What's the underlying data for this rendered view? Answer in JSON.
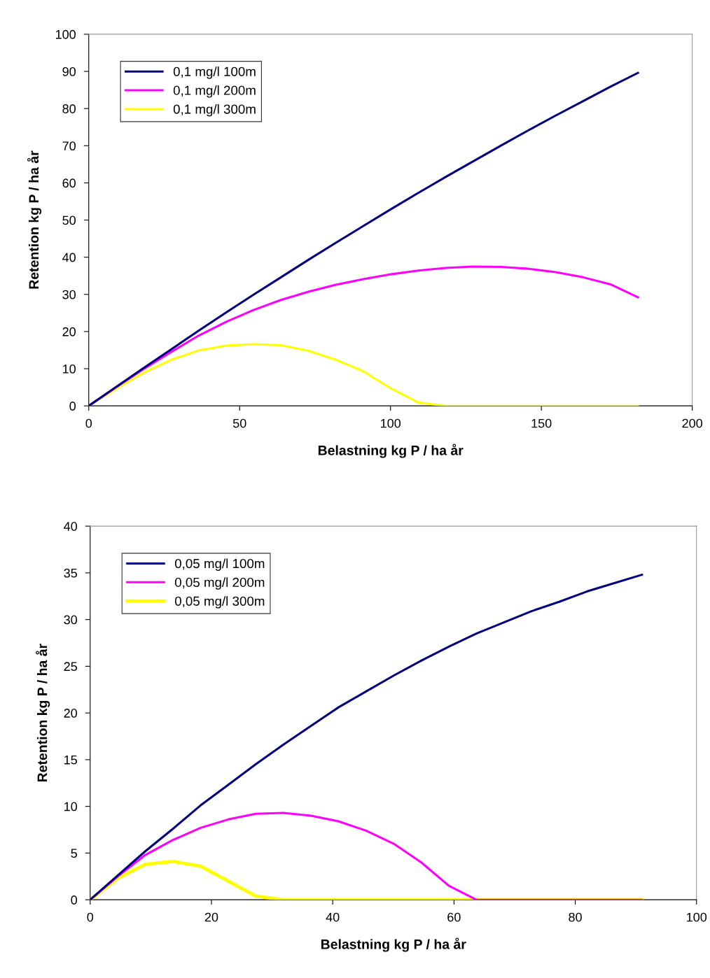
{
  "chart_data": [
    {
      "type": "line",
      "xlabel": "Belastning kg P / ha år",
      "ylabel": "Retention kg P / ha år",
      "xlim": [
        0,
        200
      ],
      "ylim": [
        0,
        100
      ],
      "xticks": [
        0,
        50,
        100,
        150,
        200
      ],
      "yticks": [
        0,
        10,
        20,
        30,
        40,
        50,
        60,
        70,
        80,
        90,
        100
      ],
      "grid": false,
      "legend": "top left",
      "marker": "none",
      "line_style": "solid",
      "x": [
        0,
        9.1,
        18.2,
        27.3,
        36.4,
        45.5,
        54.6,
        63.7,
        72.8,
        81.9,
        91,
        100.1,
        109.2,
        118.3,
        127.4,
        136.5,
        145.6,
        154.7,
        163.8,
        172.9,
        182
      ],
      "series": [
        {
          "name": "0,1 mg/l 100m",
          "color": "#000080",
          "values": [
            0,
            5.1,
            10.2,
            15.2,
            20.2,
            25.1,
            29.9,
            34.6,
            39.3,
            43.9,
            48.4,
            52.9,
            57.3,
            61.6,
            65.8,
            70,
            74.1,
            78.1,
            82,
            85.9,
            89.6
          ]
        },
        {
          "name": "0,1 mg/l 200m",
          "color": "#ff00ff",
          "values": [
            0,
            5,
            9.9,
            14.5,
            18.9,
            22.6,
            25.8,
            28.5,
            30.7,
            32.6,
            34.1,
            35.4,
            36.4,
            37.1,
            37.5,
            37.4,
            36.9,
            36,
            34.6,
            32.7,
            29.2
          ]
        },
        {
          "name": "0,1 mg/l 300m",
          "color": "#ffff00",
          "values": [
            0,
            4.6,
            8.9,
            12.4,
            14.9,
            16.2,
            16.6,
            16.3,
            14.8,
            12.4,
            9.3,
            4.7,
            0.9,
            0,
            0,
            0,
            0,
            0,
            0,
            0,
            0
          ]
        }
      ]
    },
    {
      "type": "line",
      "xlabel": "Belastning kg P / ha år",
      "ylabel": "Retention kg P / ha år",
      "xlim": [
        0,
        100
      ],
      "ylim": [
        0,
        40
      ],
      "xticks": [
        0,
        20,
        40,
        60,
        80,
        100
      ],
      "yticks": [
        0,
        5,
        10,
        15,
        20,
        25,
        30,
        35,
        40
      ],
      "grid": false,
      "legend": "top left",
      "marker": "none",
      "line_style": "solid",
      "x": [
        0,
        4.55,
        9.1,
        13.65,
        18.2,
        22.75,
        27.3,
        31.85,
        36.4,
        40.95,
        45.5,
        50.05,
        54.6,
        59.15,
        63.7,
        68.25,
        72.8,
        77.35,
        81.9,
        86.45,
        91
      ],
      "series": [
        {
          "name": "0,05 mg/l 100m",
          "color": "#000080",
          "values": [
            0,
            2.6,
            5.2,
            7.6,
            10.1,
            12.3,
            14.5,
            16.6,
            18.6,
            20.6,
            22.3,
            24,
            25.6,
            27.1,
            28.5,
            29.7,
            30.9,
            31.9,
            33,
            33.9,
            34.8
          ]
        },
        {
          "name": "0,05 mg/l 200m",
          "color": "#ff00ff",
          "values": [
            0,
            2.5,
            4.8,
            6.4,
            7.7,
            8.6,
            9.2,
            9.3,
            9,
            8.4,
            7.4,
            6,
            4,
            1.5,
            0,
            0,
            0,
            0,
            0,
            0,
            0
          ]
        },
        {
          "name": "0,05 mg/l 300m",
          "color": "#ffff00",
          "values": [
            0,
            2.3,
            3.8,
            4.1,
            3.6,
            2,
            0.4,
            0,
            0,
            0,
            0,
            0,
            0,
            0,
            0,
            0,
            0,
            0,
            0,
            0,
            0
          ]
        }
      ]
    }
  ]
}
